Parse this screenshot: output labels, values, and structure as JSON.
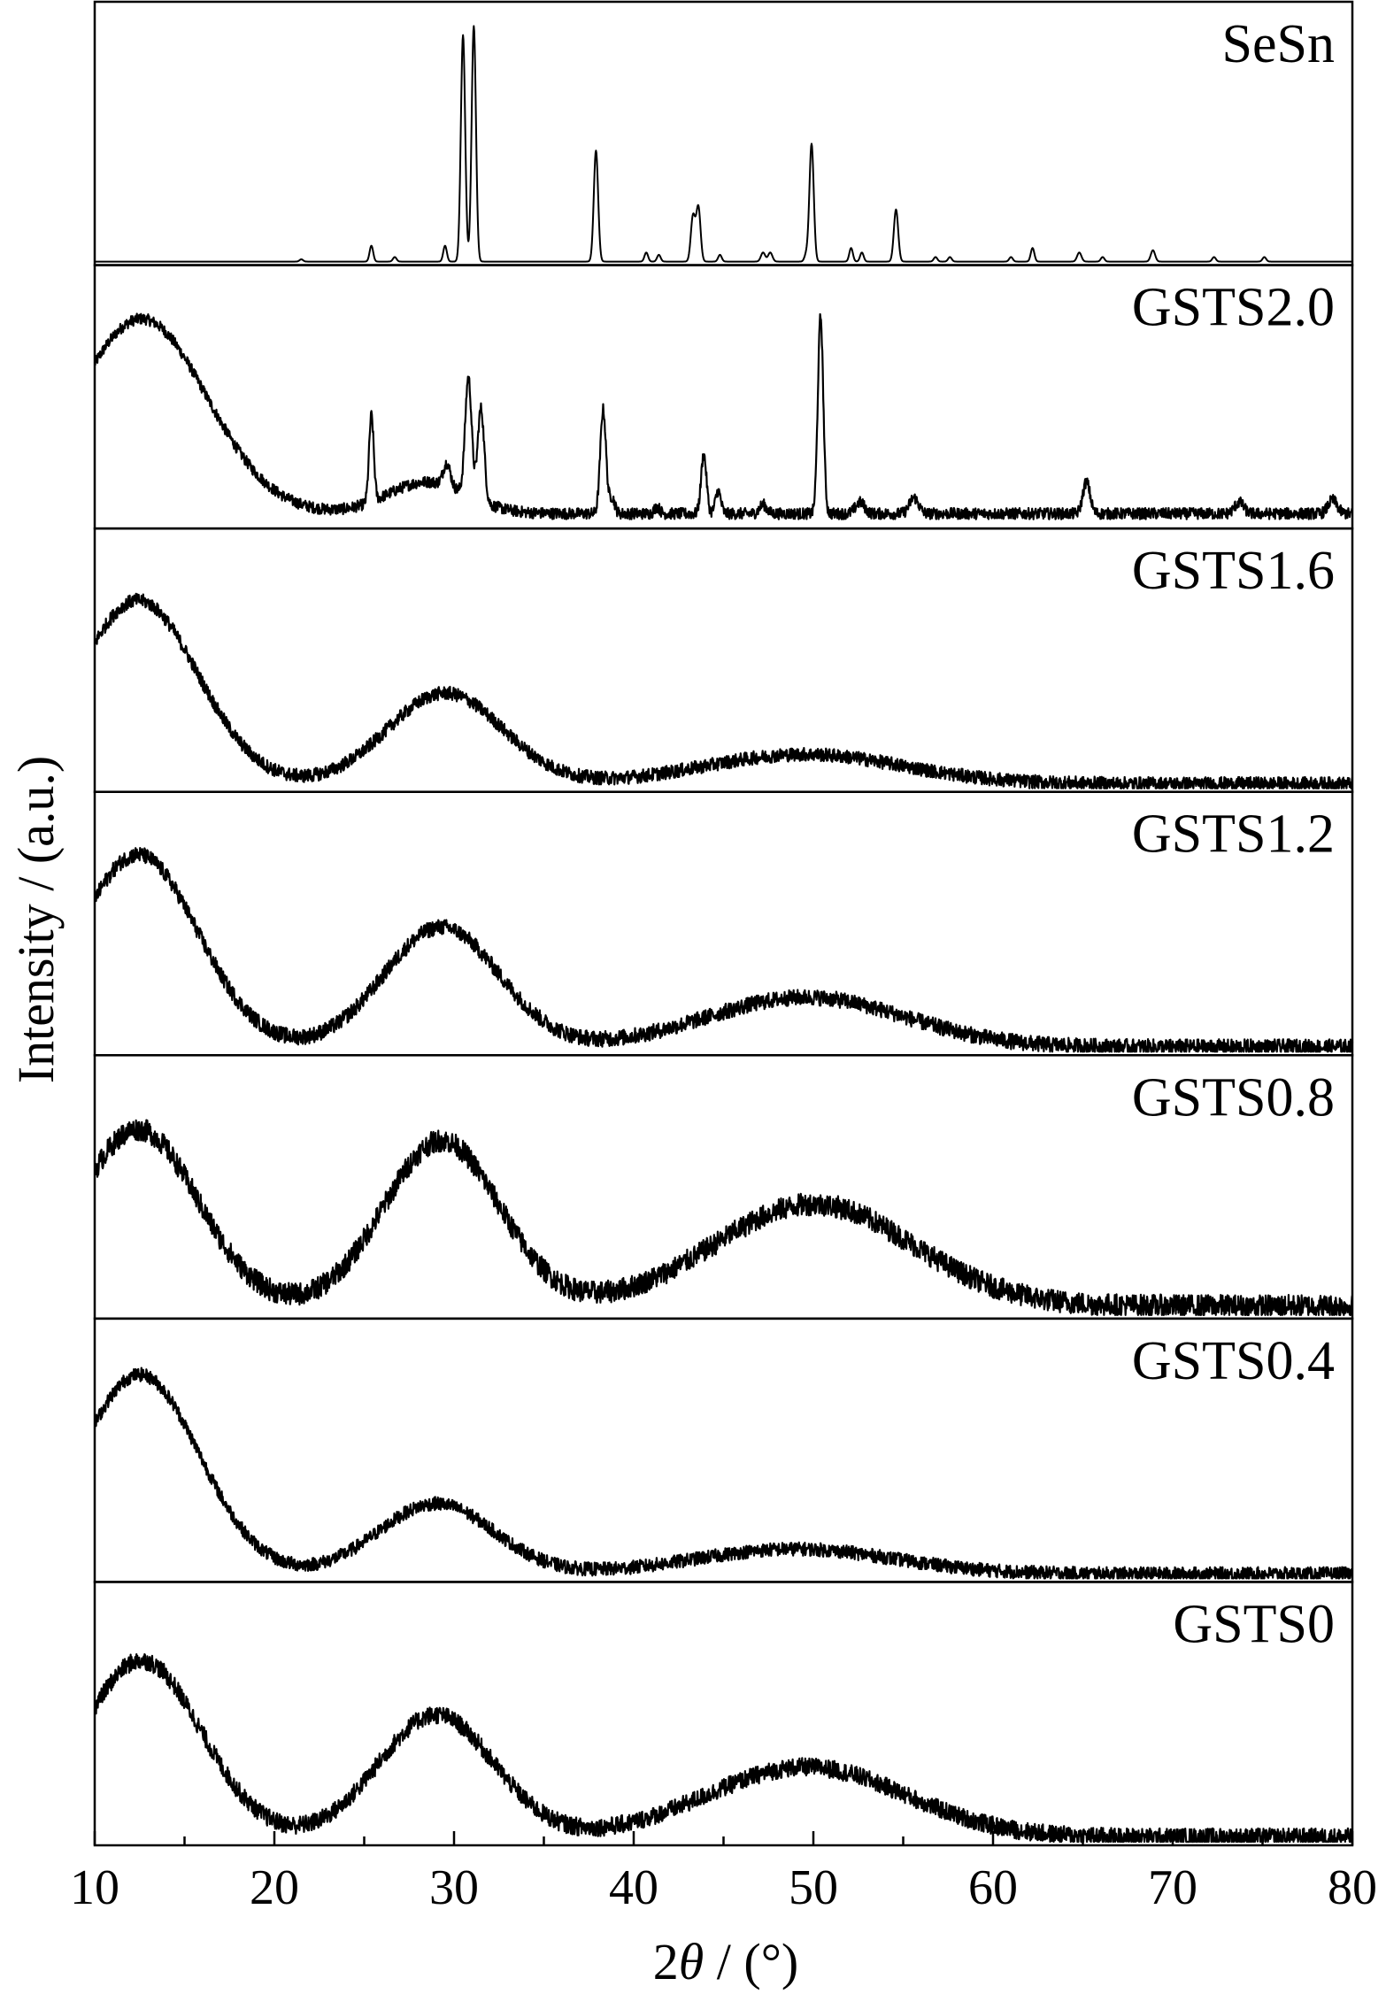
{
  "chart_data": {
    "type": "line",
    "layout": "vertically stacked panels sharing the x axis",
    "xlabel": "2θ / (°)",
    "xlabel_parts": {
      "prefix": "2",
      "symbol": "θ",
      "suffix": " / (°)"
    },
    "ylabel": "Intensity / (a.u.)",
    "xlim": [
      10,
      80
    ],
    "x_major_ticks": [
      10,
      20,
      30,
      40,
      50,
      60,
      70,
      80
    ],
    "x_minor_ticks": [
      15,
      25,
      35,
      45,
      55,
      65,
      75
    ],
    "y_ticks": "none",
    "grid": false,
    "legend": "none (each panel labelled at top-right)",
    "line_color": "#000000",
    "series": [
      {
        "name": "SeSn",
        "baseline": 0.0,
        "broad": [],
        "peaks": [
          [
            21.5,
            0.01,
            0.1
          ],
          [
            25.4,
            0.07,
            0.1
          ],
          [
            26.7,
            0.02,
            0.1
          ],
          [
            29.5,
            0.07,
            0.1
          ],
          [
            30.5,
            1.0,
            0.12
          ],
          [
            31.1,
            1.04,
            0.12
          ],
          [
            37.9,
            0.49,
            0.12
          ],
          [
            40.7,
            0.04,
            0.1
          ],
          [
            41.4,
            0.03,
            0.1
          ],
          [
            43.3,
            0.2,
            0.12
          ],
          [
            43.6,
            0.24,
            0.12
          ],
          [
            44.8,
            0.03,
            0.1
          ],
          [
            47.2,
            0.04,
            0.12
          ],
          [
            47.6,
            0.04,
            0.12
          ],
          [
            49.6,
            0.03,
            0.1
          ],
          [
            49.9,
            0.52,
            0.12
          ],
          [
            52.1,
            0.06,
            0.1
          ],
          [
            52.7,
            0.04,
            0.1
          ],
          [
            54.6,
            0.23,
            0.12
          ],
          [
            56.8,
            0.02,
            0.1
          ],
          [
            57.6,
            0.02,
            0.1
          ],
          [
            61.0,
            0.02,
            0.1
          ],
          [
            62.2,
            0.06,
            0.1
          ],
          [
            64.8,
            0.04,
            0.12
          ],
          [
            66.1,
            0.02,
            0.1
          ],
          [
            68.9,
            0.05,
            0.12
          ],
          [
            72.3,
            0.02,
            0.1
          ],
          [
            75.1,
            0.02,
            0.1
          ]
        ],
        "noise": 0.0
      },
      {
        "name": "GSTS2.0",
        "baseline": 0.05,
        "broad": [
          [
            12.6,
            0.86,
            3.6
          ],
          [
            28.5,
            0.14,
            2.2
          ]
        ],
        "peaks": [
          [
            25.4,
            0.38,
            0.13
          ],
          [
            29.6,
            0.1,
            0.2
          ],
          [
            30.8,
            0.52,
            0.18
          ],
          [
            31.5,
            0.41,
            0.18
          ],
          [
            38.3,
            0.46,
            0.16
          ],
          [
            38.8,
            0.07,
            0.15
          ],
          [
            41.3,
            0.03,
            0.15
          ],
          [
            43.9,
            0.26,
            0.15
          ],
          [
            44.7,
            0.1,
            0.15
          ],
          [
            47.2,
            0.04,
            0.2
          ],
          [
            50.4,
            0.87,
            0.15
          ],
          [
            52.6,
            0.05,
            0.25
          ],
          [
            55.6,
            0.07,
            0.25
          ],
          [
            65.2,
            0.14,
            0.2
          ],
          [
            73.7,
            0.05,
            0.25
          ],
          [
            78.9,
            0.06,
            0.25
          ]
        ],
        "noise": 0.025
      },
      {
        "name": "GSTS1.6",
        "baseline": 0.02,
        "broad": [
          [
            12.4,
            0.81,
            3.3
          ],
          [
            29.5,
            0.4,
            3.2
          ],
          [
            49.5,
            0.13,
            5.5
          ]
        ],
        "peaks": [],
        "noise": 0.03
      },
      {
        "name": "GSTS1.2",
        "baseline": 0.02,
        "broad": [
          [
            12.4,
            0.85,
            3.3
          ],
          [
            29.3,
            0.53,
            3.2
          ],
          [
            49.6,
            0.22,
            5.5
          ]
        ],
        "peaks": [],
        "noise": 0.035
      },
      {
        "name": "GSTS0.8",
        "baseline": 0.04,
        "broad": [
          [
            12.4,
            0.78,
            3.3
          ],
          [
            29.3,
            0.73,
            3.2
          ],
          [
            50.0,
            0.45,
            5.5
          ]
        ],
        "peaks": [],
        "noise": 0.05
      },
      {
        "name": "GSTS0.4",
        "baseline": 0.02,
        "broad": [
          [
            12.5,
            0.88,
            3.3
          ],
          [
            29.0,
            0.31,
            3.2
          ],
          [
            49.0,
            0.11,
            5.5
          ]
        ],
        "peaks": [],
        "noise": 0.03
      },
      {
        "name": "GSTS0",
        "baseline": 0.02,
        "broad": [
          [
            12.6,
            0.78,
            3.3
          ],
          [
            29.0,
            0.54,
            3.2
          ],
          [
            49.6,
            0.31,
            5.5
          ]
        ],
        "peaks": [],
        "noise": 0.04
      }
    ]
  }
}
